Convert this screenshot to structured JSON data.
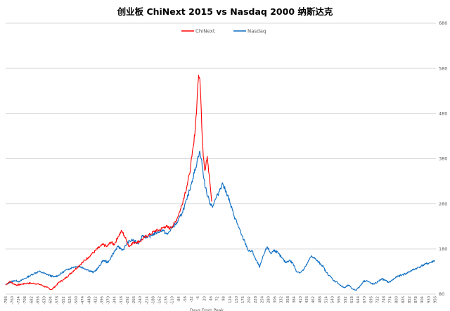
{
  "chart_data": {
    "type": "line",
    "title": "创业板 ChiNext 2015 vs Nasdaq 2000 纳斯达克",
    "xlabel": "Days From Peak",
    "ylabel": "",
    "xlim": [
      -786,
      960
    ],
    "ylim": [
      80,
      680
    ],
    "yticks": [
      "80",
      "180",
      "280",
      "380",
      "480",
      "580",
      "680"
    ],
    "xticks": [
      "-786",
      "-760",
      "-734",
      "-708",
      "-682",
      "-656",
      "-630",
      "-604",
      "-578",
      "-552",
      "-526",
      "-500",
      "-474",
      "-448",
      "-422",
      "-396",
      "-370",
      "-344",
      "-318",
      "-292",
      "-266",
      "-240",
      "-214",
      "-188",
      "-162",
      "-136",
      "-110",
      "-84",
      "-58",
      "-32",
      "-6",
      "20",
      "46",
      "72",
      "98",
      "124",
      "150",
      "176",
      "202",
      "228",
      "254",
      "280",
      "306",
      "332",
      "358",
      "384",
      "410",
      "436",
      "462",
      "488",
      "514",
      "540",
      "566",
      "592",
      "618",
      "644",
      "670",
      "696",
      "722",
      "748",
      "774",
      "800",
      "826",
      "852",
      "878",
      "904",
      "930",
      "956"
    ],
    "grid": true,
    "legend": "top-left",
    "series": [
      {
        "name": "ChiNext",
        "color": "#ff0000",
        "x": [
          -786,
          -770,
          -755,
          -740,
          -720,
          -700,
          -680,
          -660,
          -640,
          -620,
          -600,
          -585,
          -570,
          -550,
          -530,
          -510,
          -490,
          -470,
          -450,
          -430,
          -410,
          -390,
          -375,
          -360,
          -345,
          -330,
          -315,
          -305,
          -295,
          -285,
          -275,
          -260,
          -240,
          -220,
          -200,
          -180,
          -160,
          -140,
          -120,
          -105,
          -90,
          -75,
          -60,
          -50,
          -40,
          -30,
          -22,
          -15,
          -10,
          -6,
          -3,
          0,
          4,
          8,
          12,
          16,
          20,
          24,
          28,
          32,
          36,
          40,
          45,
          50
        ],
        "values": [
          100,
          108,
          103,
          100,
          102,
          104,
          104,
          103,
          100,
          95,
          90,
          97,
          106,
          112,
          122,
          132,
          142,
          152,
          162,
          172,
          182,
          190,
          185,
          195,
          190,
          207,
          220,
          210,
          198,
          185,
          192,
          195,
          197,
          207,
          212,
          220,
          222,
          230,
          226,
          233,
          248,
          270,
          300,
          320,
          345,
          385,
          415,
          460,
          500,
          545,
          565,
          560,
          535,
          485,
          425,
          385,
          365,
          355,
          375,
          385,
          365,
          345,
          315,
          285
        ]
      },
      {
        "name": "Nasdaq",
        "color": "#0b6cc2",
        "x": [
          -786,
          -770,
          -750,
          -730,
          -710,
          -690,
          -670,
          -650,
          -630,
          -610,
          -590,
          -570,
          -550,
          -530,
          -510,
          -490,
          -470,
          -450,
          -430,
          -410,
          -390,
          -370,
          -350,
          -330,
          -310,
          -290,
          -270,
          -250,
          -230,
          -210,
          -190,
          -170,
          -150,
          -130,
          -110,
          -90,
          -70,
          -50,
          -30,
          -15,
          -5,
          0,
          8,
          15,
          25,
          35,
          45,
          55,
          65,
          75,
          85,
          95,
          105,
          115,
          125,
          140,
          155,
          170,
          185,
          200,
          215,
          230,
          245,
          260,
          275,
          290,
          305,
          320,
          335,
          350,
          365,
          380,
          395,
          410,
          425,
          440,
          455,
          470,
          485,
          500,
          515,
          530,
          545,
          560,
          575,
          590,
          605,
          620,
          635,
          650,
          665,
          680,
          695,
          710,
          725,
          740,
          755,
          770,
          785,
          800,
          820,
          840,
          860,
          880,
          900,
          920,
          940,
          956
        ],
        "values": [
          100,
          106,
          110,
          108,
          114,
          120,
          126,
          130,
          126,
          122,
          118,
          122,
          130,
          136,
          140,
          142,
          138,
          133,
          128,
          138,
          155,
          150,
          170,
          185,
          178,
          195,
          200,
          192,
          210,
          205,
          212,
          217,
          222,
          212,
          228,
          238,
          260,
          290,
          330,
          360,
          385,
          395,
          380,
          350,
          315,
          295,
          280,
          275,
          290,
          300,
          315,
          325,
          310,
          300,
          280,
          255,
          235,
          212,
          195,
          175,
          175,
          155,
          140,
          165,
          185,
          170,
          178,
          170,
          160,
          150,
          155,
          148,
          130,
          128,
          135,
          150,
          165,
          158,
          150,
          143,
          128,
          120,
          110,
          106,
          98,
          94,
          100,
          92,
          89,
          96,
          108,
          110,
          104,
          102,
          108,
          114,
          110,
          106,
          112,
          118,
          122,
          126,
          132,
          137,
          142,
          147,
          150,
          155
        ]
      }
    ]
  }
}
